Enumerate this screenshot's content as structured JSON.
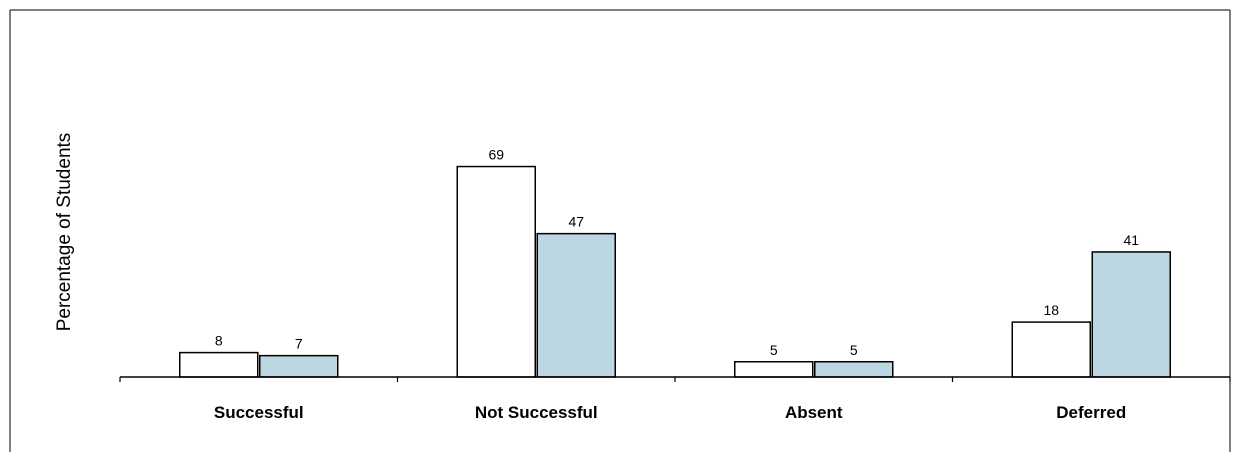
{
  "chart_data": {
    "type": "bar",
    "title": "",
    "xlabel": "",
    "ylabel": "Percentage of Students",
    "categories": [
      "Successful",
      "Not Successful",
      "Absent",
      "Deferred"
    ],
    "series": [
      {
        "values": [
          8,
          69,
          5,
          18
        ],
        "color": "#ffffff"
      },
      {
        "values": [
          7,
          47,
          5,
          41
        ],
        "color": "#bdd7e2"
      }
    ],
    "ylim": [
      0,
      100
    ],
    "grid": false,
    "legend": "none"
  }
}
